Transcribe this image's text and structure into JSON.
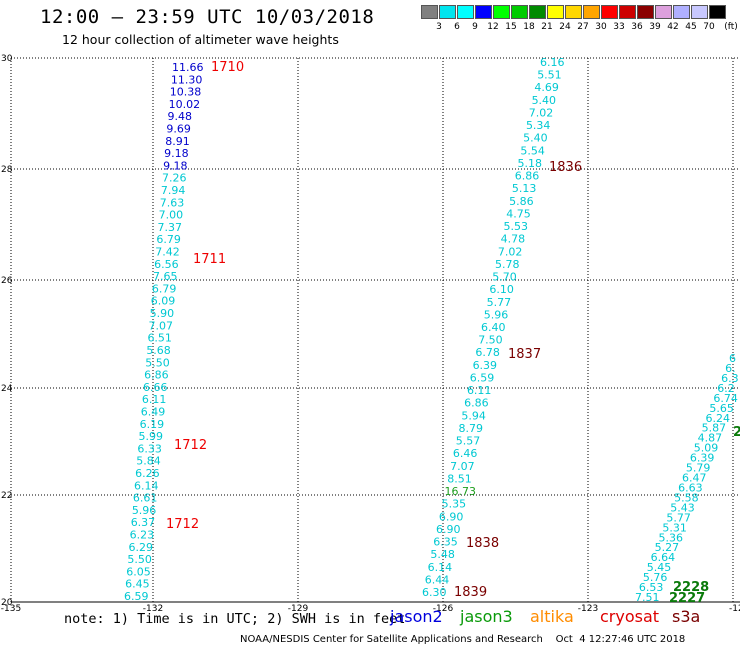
{
  "header": {
    "title": "12:00 — 23:59 UTC 10/03/2018",
    "subtitle": "12 hour collection of altimeter wave heights"
  },
  "legend": {
    "unit": "(ft)",
    "swatches": [
      {
        "color": "#808080",
        "label": "3"
      },
      {
        "color": "#00e5ee",
        "label": "6"
      },
      {
        "color": "#00ffff",
        "label": "9"
      },
      {
        "color": "#0000ff",
        "label": "12"
      },
      {
        "color": "#00ff00",
        "label": "15"
      },
      {
        "color": "#00cc00",
        "label": "18"
      },
      {
        "color": "#008b00",
        "label": "21"
      },
      {
        "color": "#ffff00",
        "label": "24"
      },
      {
        "color": "#ffd700",
        "label": "27"
      },
      {
        "color": "#ffa500",
        "label": "30"
      },
      {
        "color": "#ff0000",
        "label": "33"
      },
      {
        "color": "#cd0000",
        "label": "36"
      },
      {
        "color": "#8b0000",
        "label": "39"
      },
      {
        "color": "#dda0dd",
        "label": "42"
      },
      {
        "color": "#b0b0ff",
        "label": "45"
      },
      {
        "color": "#c8c8ff",
        "label": "70"
      },
      {
        "color": "#000000",
        "label": ""
      }
    ]
  },
  "map": {
    "lon_ticks": [
      "-135",
      "-132",
      "-129",
      "-126",
      "-123",
      "-12"
    ],
    "lat_ticks": [
      "30",
      "28",
      "26",
      "24",
      "22",
      "20"
    ],
    "colors": {
      "cyan": "#00c8d2",
      "blue": "#0000cc",
      "green": "#1e9e1e",
      "red": "#ee0000",
      "maroon": "#7a0000",
      "darkgreen": "#0a7a0a"
    },
    "track1": [
      {
        "v": "11.66",
        "c": "blue"
      },
      {
        "v": "11.30",
        "c": "blue"
      },
      {
        "v": "10.38",
        "c": "blue"
      },
      {
        "v": "10.02",
        "c": "blue"
      },
      {
        "v": "9.48",
        "c": "blue"
      },
      {
        "v": "9.69",
        "c": "blue"
      },
      {
        "v": "8.91",
        "c": "blue"
      },
      {
        "v": "9.18",
        "c": "blue"
      },
      {
        "v": "9.18",
        "c": "blue"
      },
      {
        "v": "7.26",
        "c": "cyan"
      },
      {
        "v": "7.94",
        "c": "cyan"
      },
      {
        "v": "7.63",
        "c": "cyan"
      },
      {
        "v": "7.00",
        "c": "cyan"
      },
      {
        "v": "7.37",
        "c": "cyan"
      },
      {
        "v": "6.79",
        "c": "cyan"
      },
      {
        "v": "7.42",
        "c": "cyan"
      },
      {
        "v": "6.56",
        "c": "cyan"
      },
      {
        "v": "7.65",
        "c": "cyan"
      },
      {
        "v": "6.79",
        "c": "cyan"
      },
      {
        "v": "6.09",
        "c": "cyan"
      },
      {
        "v": "5.90",
        "c": "cyan"
      },
      {
        "v": "7.07",
        "c": "cyan"
      },
      {
        "v": "6.51",
        "c": "cyan"
      },
      {
        "v": "5.68",
        "c": "cyan"
      },
      {
        "v": "5.50",
        "c": "cyan"
      },
      {
        "v": "6.86",
        "c": "cyan"
      },
      {
        "v": "6.66",
        "c": "cyan"
      },
      {
        "v": "6.11",
        "c": "cyan"
      },
      {
        "v": "6.49",
        "c": "cyan"
      },
      {
        "v": "6.19",
        "c": "cyan"
      },
      {
        "v": "5.99",
        "c": "cyan"
      },
      {
        "v": "6.33",
        "c": "cyan"
      },
      {
        "v": "5.84",
        "c": "cyan"
      },
      {
        "v": "6.26",
        "c": "cyan"
      },
      {
        "v": "6.14",
        "c": "cyan"
      },
      {
        "v": "6.61",
        "c": "cyan"
      },
      {
        "v": "5.96",
        "c": "cyan"
      },
      {
        "v": "6.37",
        "c": "cyan"
      },
      {
        "v": "6.23",
        "c": "cyan"
      },
      {
        "v": "6.29",
        "c": "cyan"
      },
      {
        "v": "5.50",
        "c": "cyan"
      },
      {
        "v": "6.05",
        "c": "cyan"
      },
      {
        "v": "6.45",
        "c": "cyan"
      },
      {
        "v": "6.59",
        "c": "cyan"
      }
    ],
    "track2": [
      {
        "v": "6.16",
        "c": "cyan"
      },
      {
        "v": "5.51",
        "c": "cyan"
      },
      {
        "v": "4.69",
        "c": "cyan"
      },
      {
        "v": "5.40",
        "c": "cyan"
      },
      {
        "v": "7.02",
        "c": "cyan"
      },
      {
        "v": "5.34",
        "c": "cyan"
      },
      {
        "v": "5.40",
        "c": "cyan"
      },
      {
        "v": "5.54",
        "c": "cyan"
      },
      {
        "v": "5.18",
        "c": "cyan"
      },
      {
        "v": "6.86",
        "c": "cyan"
      },
      {
        "v": "5.13",
        "c": "cyan"
      },
      {
        "v": "5.86",
        "c": "cyan"
      },
      {
        "v": "4.75",
        "c": "cyan"
      },
      {
        "v": "5.53",
        "c": "cyan"
      },
      {
        "v": "4.78",
        "c": "cyan"
      },
      {
        "v": "7.02",
        "c": "cyan"
      },
      {
        "v": "5.78",
        "c": "cyan"
      },
      {
        "v": "5.70",
        "c": "cyan"
      },
      {
        "v": "6.10",
        "c": "cyan"
      },
      {
        "v": "5.77",
        "c": "cyan"
      },
      {
        "v": "5.96",
        "c": "cyan"
      },
      {
        "v": "6.40",
        "c": "cyan"
      },
      {
        "v": "7.50",
        "c": "cyan"
      },
      {
        "v": "6.78",
        "c": "cyan"
      },
      {
        "v": "6.39",
        "c": "cyan"
      },
      {
        "v": "6.59",
        "c": "cyan"
      },
      {
        "v": "6.11",
        "c": "cyan"
      },
      {
        "v": "6.86",
        "c": "cyan"
      },
      {
        "v": "5.94",
        "c": "cyan"
      },
      {
        "v": "8.79",
        "c": "cyan"
      },
      {
        "v": "5.57",
        "c": "cyan"
      },
      {
        "v": "6.46",
        "c": "cyan"
      },
      {
        "v": "7.07",
        "c": "cyan"
      },
      {
        "v": "8.51",
        "c": "cyan"
      },
      {
        "v": "16.73",
        "c": "green"
      },
      {
        "v": "5.35",
        "c": "cyan"
      },
      {
        "v": "6.90",
        "c": "cyan"
      },
      {
        "v": "6.90",
        "c": "cyan"
      },
      {
        "v": "6.35",
        "c": "cyan"
      },
      {
        "v": "5.48",
        "c": "cyan"
      },
      {
        "v": "6.14",
        "c": "cyan"
      },
      {
        "v": "6.44",
        "c": "cyan"
      },
      {
        "v": "6.30",
        "c": "cyan"
      }
    ],
    "track3": [
      {
        "v": "6",
        "c": "cyan"
      },
      {
        "v": "6.",
        "c": "cyan"
      },
      {
        "v": "6.3",
        "c": "cyan"
      },
      {
        "v": "6.2",
        "c": "cyan"
      },
      {
        "v": "6.74",
        "c": "cyan"
      },
      {
        "v": "5.65",
        "c": "cyan"
      },
      {
        "v": "6.24",
        "c": "cyan"
      },
      {
        "v": "5.87",
        "c": "cyan"
      },
      {
        "v": "4.87",
        "c": "cyan"
      },
      {
        "v": "5.09",
        "c": "cyan"
      },
      {
        "v": "6.39",
        "c": "cyan"
      },
      {
        "v": "5.79",
        "c": "cyan"
      },
      {
        "v": "6.47",
        "c": "cyan"
      },
      {
        "v": "6.63",
        "c": "cyan"
      },
      {
        "v": "5.58",
        "c": "cyan"
      },
      {
        "v": "5.43",
        "c": "cyan"
      },
      {
        "v": "5.77",
        "c": "cyan"
      },
      {
        "v": "5.31",
        "c": "cyan"
      },
      {
        "v": "5.36",
        "c": "cyan"
      },
      {
        "v": "5.27",
        "c": "cyan"
      },
      {
        "v": "6.64",
        "c": "cyan"
      },
      {
        "v": "5.45",
        "c": "cyan"
      },
      {
        "v": "5.76",
        "c": "cyan"
      },
      {
        "v": "6.53",
        "c": "cyan"
      },
      {
        "v": "7.51",
        "c": "cyan"
      }
    ],
    "time_labels": [
      {
        "text": "1710",
        "c": "red"
      },
      {
        "text": "1711",
        "c": "red"
      },
      {
        "text": "1712",
        "c": "red"
      },
      {
        "text": "1712",
        "c": "red"
      },
      {
        "text": "1836",
        "c": "maroon"
      },
      {
        "text": "1837",
        "c": "maroon"
      },
      {
        "text": "1838",
        "c": "maroon"
      },
      {
        "text": "1839",
        "c": "maroon"
      },
      {
        "text": "2228",
        "c": "darkgreen"
      },
      {
        "text": "2227",
        "c": "darkgreen"
      },
      {
        "text": "2",
        "c": "darkgreen"
      }
    ]
  },
  "footer": {
    "note": "note: 1) Time is in UTC; 2) SWH is in feet",
    "satellites": [
      {
        "name": "jason2",
        "color": "#0000dd"
      },
      {
        "name": "jason3",
        "color": "#0a9a0a"
      },
      {
        "name": "altika",
        "color": "#ff8c00"
      },
      {
        "name": "cryosat",
        "color": "#dd0000"
      },
      {
        "name": "s3a",
        "color": "#7a0000"
      }
    ],
    "credit": "NOAA/NESDIS Center for Satellite Applications and Research    Oct  4 12:27:46 UTC 2018"
  }
}
